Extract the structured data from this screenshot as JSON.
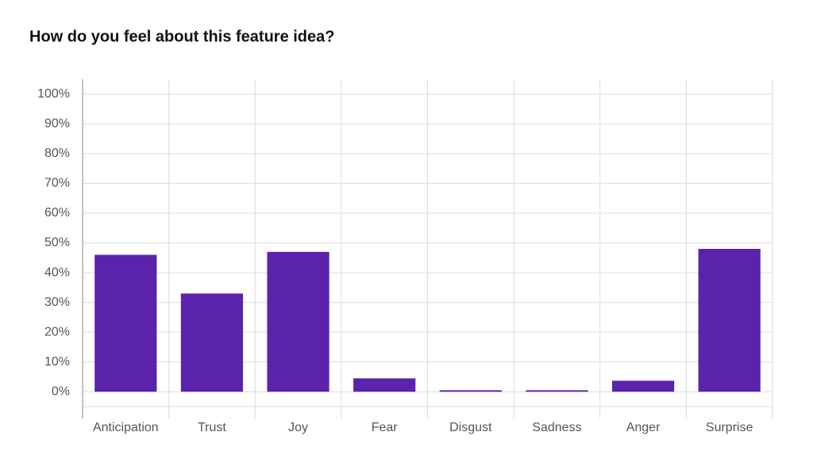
{
  "chart_data": {
    "type": "bar",
    "title": "How do you feel about this feature idea?",
    "categories": [
      "Anticipation",
      "Trust",
      "Joy",
      "Fear",
      "Disgust",
      "Sadness",
      "Anger",
      "Surprise"
    ],
    "values": [
      46,
      33,
      47,
      4.5,
      0.5,
      0.5,
      3.7,
      48
    ],
    "color": "#5b23ac",
    "ylim": [
      -5,
      105
    ],
    "yticks": [
      {
        "value": 0,
        "label": "0%"
      },
      {
        "value": 10,
        "label": "10%"
      },
      {
        "value": 20,
        "label": "20%"
      },
      {
        "value": 30,
        "label": "30%"
      },
      {
        "value": 40,
        "label": "40%"
      },
      {
        "value": 50,
        "label": "50%"
      },
      {
        "value": 60,
        "label": "60%"
      },
      {
        "value": 70,
        "label": "70%"
      },
      {
        "value": 80,
        "label": "80%"
      },
      {
        "value": 90,
        "label": "90%"
      },
      {
        "value": 100,
        "label": "100%"
      }
    ],
    "grid": true
  }
}
